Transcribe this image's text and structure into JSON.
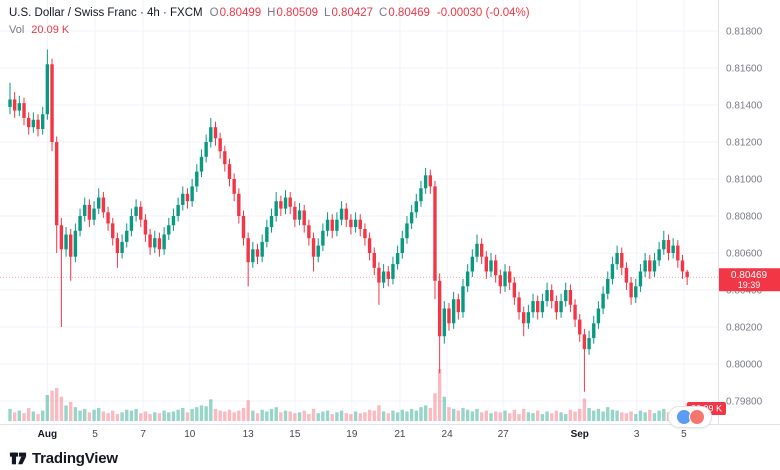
{
  "header": {
    "symbol_title": "U.S. Dollar / Swiss Franc · 4h · FXCM",
    "ohlc": {
      "o_label": "O",
      "o": "0.80499",
      "h_label": "H",
      "h": "0.80509",
      "l_label": "L",
      "l": "0.80427",
      "c_label": "C",
      "c": "0.80469",
      "change": "-0.00030 (-0.04%)"
    },
    "volume_label": "Vol",
    "volume_value": "20.09 K"
  },
  "logo": {
    "text": "TradingView"
  },
  "colors": {
    "up": "#089981",
    "down": "#f23645",
    "grid": "#f0f3fa",
    "axis_border": "#e0e3eb",
    "axis_text": "#787b86",
    "time_text": "#434651",
    "month_text": "#131722",
    "text": "#131722",
    "badge_red": "#f23645"
  },
  "price_axis": {
    "labels": [
      "0.81800",
      "0.81600",
      "0.81400",
      "0.81200",
      "0.81000",
      "0.80800",
      "0.80600",
      "0.80400",
      "0.80200",
      "0.80000",
      "0.79800"
    ],
    "last_price_badge": {
      "price": "0.80469",
      "countdown": "19:39"
    },
    "volume_badge": "20.09 K"
  },
  "chart_data": {
    "type": "candlestick_with_volume",
    "title": "U.S. Dollar / Swiss Franc",
    "interval": "4h",
    "exchange": "FXCM",
    "ohlc_current": {
      "open": 0.80499,
      "high": 0.80509,
      "low": 0.80427,
      "close": 0.80469
    },
    "change": -0.0003,
    "change_pct": -0.04,
    "current_volume_k": 20.09,
    "price_range": [
      0.798,
      0.818
    ],
    "price_step": 0.002,
    "time_ticks": [
      {
        "label": "Aug",
        "i": 8,
        "major": true
      },
      {
        "label": "5",
        "i": 18.2,
        "major": false
      },
      {
        "label": "7",
        "i": 28.5,
        "major": false
      },
      {
        "label": "10",
        "i": 38.5,
        "major": false
      },
      {
        "label": "13",
        "i": 51,
        "major": false
      },
      {
        "label": "15",
        "i": 61,
        "major": false
      },
      {
        "label": "19",
        "i": 73.2,
        "major": false
      },
      {
        "label": "21",
        "i": 83.5,
        "major": false
      },
      {
        "label": "24",
        "i": 93.6,
        "major": false
      },
      {
        "label": "27",
        "i": 105.6,
        "major": false
      },
      {
        "label": "Sep",
        "i": 122,
        "major": true
      },
      {
        "label": "3",
        "i": 134.2,
        "major": false
      },
      {
        "label": "5",
        "i": 144.3,
        "major": false
      }
    ],
    "candles": [
      [
        0.8139,
        0.8152,
        0.8135,
        0.8143
      ],
      [
        0.8143,
        0.8147,
        0.8133,
        0.8137
      ],
      [
        0.8137,
        0.8145,
        0.8134,
        0.8141
      ],
      [
        0.8141,
        0.8144,
        0.8129,
        0.8133
      ],
      [
        0.8133,
        0.8136,
        0.8124,
        0.8128
      ],
      [
        0.8128,
        0.8136,
        0.8125,
        0.8132
      ],
      [
        0.8132,
        0.8135,
        0.8123,
        0.8127
      ],
      [
        0.8127,
        0.8139,
        0.8124,
        0.8135
      ],
      [
        0.8135,
        0.817,
        0.8132,
        0.8162
      ],
      [
        0.8162,
        0.8165,
        0.8115,
        0.812
      ],
      [
        0.812,
        0.8123,
        0.806,
        0.8075
      ],
      [
        0.8075,
        0.8079,
        0.802,
        0.8062
      ],
      [
        0.8062,
        0.8074,
        0.8058,
        0.807
      ],
      [
        0.807,
        0.8073,
        0.8045,
        0.8058
      ],
      [
        0.8058,
        0.8076,
        0.8055,
        0.8072
      ],
      [
        0.8072,
        0.8084,
        0.8069,
        0.808
      ],
      [
        0.808,
        0.809,
        0.8077,
        0.8086
      ],
      [
        0.8086,
        0.8089,
        0.8074,
        0.8078
      ],
      [
        0.8078,
        0.8088,
        0.8075,
        0.8084
      ],
      [
        0.8084,
        0.8095,
        0.8081,
        0.809
      ],
      [
        0.809,
        0.8093,
        0.8079,
        0.8082
      ],
      [
        0.8082,
        0.8085,
        0.8072,
        0.8076
      ],
      [
        0.8076,
        0.8079,
        0.8064,
        0.8068
      ],
      [
        0.8068,
        0.8071,
        0.8052,
        0.806
      ],
      [
        0.806,
        0.807,
        0.8057,
        0.8066
      ],
      [
        0.8066,
        0.8076,
        0.8063,
        0.8072
      ],
      [
        0.8072,
        0.8084,
        0.8069,
        0.808
      ],
      [
        0.808,
        0.8089,
        0.8077,
        0.8085
      ],
      [
        0.8085,
        0.8088,
        0.8074,
        0.8078
      ],
      [
        0.8078,
        0.8081,
        0.8066,
        0.807
      ],
      [
        0.807,
        0.8073,
        0.8059,
        0.8063
      ],
      [
        0.8063,
        0.8072,
        0.806,
        0.8068
      ],
      [
        0.8068,
        0.8071,
        0.8058,
        0.8062
      ],
      [
        0.8062,
        0.8074,
        0.8059,
        0.807
      ],
      [
        0.807,
        0.8079,
        0.8067,
        0.8075
      ],
      [
        0.8075,
        0.8084,
        0.8072,
        0.808
      ],
      [
        0.808,
        0.809,
        0.8077,
        0.8086
      ],
      [
        0.8086,
        0.8096,
        0.8083,
        0.8092
      ],
      [
        0.8092,
        0.8095,
        0.8084,
        0.8088
      ],
      [
        0.8088,
        0.81,
        0.8085,
        0.8096
      ],
      [
        0.8096,
        0.8108,
        0.8093,
        0.8104
      ],
      [
        0.8104,
        0.8116,
        0.8101,
        0.8112
      ],
      [
        0.8112,
        0.8124,
        0.8109,
        0.812
      ],
      [
        0.812,
        0.8133,
        0.8117,
        0.8128
      ],
      [
        0.8128,
        0.8131,
        0.8118,
        0.8122
      ],
      [
        0.8122,
        0.8125,
        0.8111,
        0.8115
      ],
      [
        0.8115,
        0.8118,
        0.8104,
        0.8108
      ],
      [
        0.8108,
        0.8111,
        0.8096,
        0.81
      ],
      [
        0.81,
        0.8103,
        0.8088,
        0.8092
      ],
      [
        0.8092,
        0.8095,
        0.8076,
        0.808
      ],
      [
        0.808,
        0.8083,
        0.8064,
        0.8068
      ],
      [
        0.8068,
        0.8071,
        0.8042,
        0.8055
      ],
      [
        0.8055,
        0.8066,
        0.8052,
        0.8062
      ],
      [
        0.8062,
        0.8065,
        0.8054,
        0.8058
      ],
      [
        0.8058,
        0.807,
        0.8055,
        0.8066
      ],
      [
        0.8066,
        0.8078,
        0.8063,
        0.8074
      ],
      [
        0.8074,
        0.8084,
        0.8071,
        0.808
      ],
      [
        0.808,
        0.8093,
        0.8077,
        0.8088
      ],
      [
        0.8088,
        0.8091,
        0.808,
        0.8084
      ],
      [
        0.8084,
        0.8094,
        0.8081,
        0.809
      ],
      [
        0.809,
        0.8093,
        0.8081,
        0.8085
      ],
      [
        0.8085,
        0.8088,
        0.8074,
        0.8078
      ],
      [
        0.8078,
        0.8087,
        0.8075,
        0.8083
      ],
      [
        0.8083,
        0.8086,
        0.8071,
        0.8075
      ],
      [
        0.8075,
        0.8078,
        0.8064,
        0.8068
      ],
      [
        0.8068,
        0.8071,
        0.805,
        0.8058
      ],
      [
        0.8058,
        0.8068,
        0.8055,
        0.8064
      ],
      [
        0.8064,
        0.8076,
        0.8061,
        0.8072
      ],
      [
        0.8072,
        0.8082,
        0.8069,
        0.8078
      ],
      [
        0.8078,
        0.8081,
        0.8068,
        0.8072
      ],
      [
        0.8072,
        0.8082,
        0.8069,
        0.8078
      ],
      [
        0.8078,
        0.8088,
        0.8075,
        0.8084
      ],
      [
        0.8084,
        0.8087,
        0.8074,
        0.8078
      ],
      [
        0.8078,
        0.8081,
        0.807,
        0.8074
      ],
      [
        0.8074,
        0.8082,
        0.8071,
        0.8078
      ],
      [
        0.8078,
        0.8081,
        0.8069,
        0.8073
      ],
      [
        0.8073,
        0.8076,
        0.8064,
        0.8068
      ],
      [
        0.8068,
        0.8071,
        0.8056,
        0.806
      ],
      [
        0.806,
        0.8063,
        0.8048,
        0.8052
      ],
      [
        0.8052,
        0.8055,
        0.8032,
        0.8044
      ],
      [
        0.8044,
        0.8054,
        0.8041,
        0.805
      ],
      [
        0.805,
        0.8053,
        0.8042,
        0.8046
      ],
      [
        0.8046,
        0.8058,
        0.8043,
        0.8054
      ],
      [
        0.8054,
        0.8064,
        0.8051,
        0.806
      ],
      [
        0.806,
        0.8072,
        0.8057,
        0.8068
      ],
      [
        0.8068,
        0.808,
        0.8065,
        0.8076
      ],
      [
        0.8076,
        0.8086,
        0.8073,
        0.8082
      ],
      [
        0.8082,
        0.8092,
        0.8079,
        0.8088
      ],
      [
        0.8088,
        0.8099,
        0.8085,
        0.8095
      ],
      [
        0.8095,
        0.8106,
        0.8092,
        0.8102
      ],
      [
        0.8102,
        0.8105,
        0.8092,
        0.8096
      ],
      [
        0.8096,
        0.8099,
        0.8035,
        0.8045
      ],
      [
        0.8045,
        0.8049,
        0.7995,
        0.8015
      ],
      [
        0.8015,
        0.8034,
        0.8011,
        0.803
      ],
      [
        0.803,
        0.8033,
        0.8018,
        0.8022
      ],
      [
        0.8022,
        0.8039,
        0.8019,
        0.8035
      ],
      [
        0.8035,
        0.8038,
        0.8024,
        0.8028
      ],
      [
        0.8028,
        0.8046,
        0.8025,
        0.8042
      ],
      [
        0.8042,
        0.8054,
        0.8039,
        0.805
      ],
      [
        0.805,
        0.8062,
        0.8047,
        0.8058
      ],
      [
        0.8058,
        0.807,
        0.8055,
        0.8065
      ],
      [
        0.8065,
        0.8068,
        0.8054,
        0.8058
      ],
      [
        0.8058,
        0.8061,
        0.8046,
        0.805
      ],
      [
        0.805,
        0.806,
        0.8047,
        0.8056
      ],
      [
        0.8056,
        0.8059,
        0.8044,
        0.8048
      ],
      [
        0.8048,
        0.8051,
        0.8038,
        0.8042
      ],
      [
        0.8042,
        0.8054,
        0.8039,
        0.805
      ],
      [
        0.805,
        0.8053,
        0.804,
        0.8044
      ],
      [
        0.8044,
        0.8047,
        0.8032,
        0.8036
      ],
      [
        0.8036,
        0.8039,
        0.8024,
        0.8028
      ],
      [
        0.8028,
        0.8031,
        0.8015,
        0.8022
      ],
      [
        0.8022,
        0.8032,
        0.8019,
        0.8028
      ],
      [
        0.8028,
        0.8038,
        0.8025,
        0.8034
      ],
      [
        0.8034,
        0.8037,
        0.8024,
        0.8028
      ],
      [
        0.8028,
        0.8038,
        0.8025,
        0.8034
      ],
      [
        0.8034,
        0.8044,
        0.8031,
        0.804
      ],
      [
        0.804,
        0.8043,
        0.803,
        0.8034
      ],
      [
        0.8034,
        0.8037,
        0.8024,
        0.8028
      ],
      [
        0.8028,
        0.8038,
        0.8025,
        0.8034
      ],
      [
        0.8034,
        0.8044,
        0.8031,
        0.804
      ],
      [
        0.804,
        0.8043,
        0.8028,
        0.8032
      ],
      [
        0.8032,
        0.8035,
        0.802,
        0.8024
      ],
      [
        0.8024,
        0.8027,
        0.8012,
        0.8016
      ],
      [
        0.8016,
        0.8019,
        0.7985,
        0.8008
      ],
      [
        0.8008,
        0.8018,
        0.8005,
        0.8014
      ],
      [
        0.8014,
        0.8026,
        0.8011,
        0.8022
      ],
      [
        0.8022,
        0.8034,
        0.8019,
        0.803
      ],
      [
        0.803,
        0.8042,
        0.8027,
        0.8038
      ],
      [
        0.8038,
        0.805,
        0.8035,
        0.8046
      ],
      [
        0.8046,
        0.8058,
        0.8043,
        0.8054
      ],
      [
        0.8054,
        0.8064,
        0.8051,
        0.806
      ],
      [
        0.806,
        0.8063,
        0.8048,
        0.8052
      ],
      [
        0.8052,
        0.8055,
        0.804,
        0.8044
      ],
      [
        0.8044,
        0.8047,
        0.8032,
        0.8036
      ],
      [
        0.8036,
        0.8046,
        0.8033,
        0.8042
      ],
      [
        0.8042,
        0.8054,
        0.8039,
        0.805
      ],
      [
        0.805,
        0.806,
        0.8047,
        0.8056
      ],
      [
        0.8056,
        0.8059,
        0.8046,
        0.805
      ],
      [
        0.805,
        0.806,
        0.8047,
        0.8056
      ],
      [
        0.8056,
        0.8066,
        0.8053,
        0.8062
      ],
      [
        0.8062,
        0.8072,
        0.8059,
        0.8067
      ],
      [
        0.8067,
        0.807,
        0.8056,
        0.806
      ],
      [
        0.806,
        0.8068,
        0.8057,
        0.8064
      ],
      [
        0.8064,
        0.8067,
        0.8052,
        0.8056
      ],
      [
        0.8056,
        0.8059,
        0.8046,
        0.805
      ],
      [
        0.80499,
        0.80509,
        0.80427,
        0.80469
      ]
    ],
    "volumes_k": [
      14,
      10,
      12,
      9,
      15,
      11,
      8,
      12,
      30,
      35,
      38,
      28,
      18,
      22,
      16,
      12,
      14,
      10,
      13,
      15,
      11,
      9,
      12,
      8,
      10,
      13,
      12,
      14,
      9,
      11,
      8,
      10,
      9,
      12,
      10,
      11,
      13,
      15,
      10,
      14,
      16,
      18,
      17,
      25,
      14,
      12,
      11,
      13,
      10,
      12,
      15,
      24,
      12,
      9,
      13,
      11,
      14,
      16,
      10,
      12,
      11,
      9,
      10,
      12,
      8,
      14,
      9,
      11,
      12,
      8,
      10,
      12,
      9,
      8,
      11,
      9,
      10,
      13,
      12,
      18,
      11,
      9,
      12,
      10,
      13,
      11,
      14,
      12,
      16,
      18,
      15,
      32,
      60,
      28,
      16,
      14,
      12,
      15,
      13,
      11,
      14,
      10,
      12,
      9,
      11,
      10,
      12,
      9,
      13,
      8,
      14,
      10,
      9,
      12,
      8,
      11,
      9,
      12,
      10,
      8,
      13,
      11,
      14,
      26,
      15,
      12,
      14,
      11,
      16,
      13,
      12,
      10,
      9,
      11,
      8,
      12,
      10,
      13,
      9,
      12,
      14,
      10,
      12,
      9,
      11,
      20.09
    ],
    "legend_position": "top-left",
    "grid": true
  }
}
